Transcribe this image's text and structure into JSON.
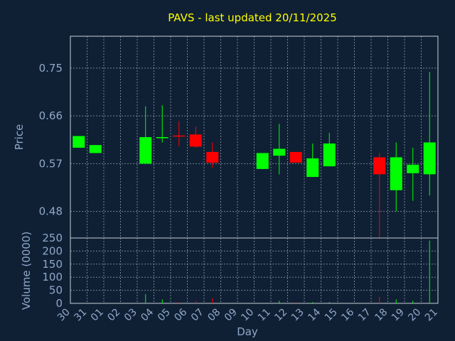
{
  "title": "PAVS - last updated 20/11/2025",
  "colors": {
    "background": "#0f2035",
    "up": "#00ff00",
    "down": "#ff0000",
    "title": "#ffff00",
    "text": "#8fa8c8",
    "axes": "#c8d0d8"
  },
  "chart_data": {
    "type": "candlestick",
    "title": "PAVS - last updated 20/11/2025",
    "xlabel": "Day",
    "price_panel": {
      "ylabel": "Price",
      "ylim": [
        0.43,
        0.81
      ],
      "yticks": [
        "0.75",
        "0.66",
        "0.57",
        "0.48"
      ],
      "grid": true
    },
    "volume_panel": {
      "ylabel": "Volume (0000)",
      "ylim": [
        0,
        250
      ],
      "yticks": [
        "250",
        "200",
        "150",
        "100",
        "50",
        "0"
      ],
      "grid": true
    },
    "x_ticks": [
      "30",
      "31",
      "01",
      "02",
      "03",
      "04",
      "05",
      "06",
      "07",
      "08",
      "09",
      "10",
      "11",
      "12",
      "13",
      "14",
      "15",
      "16",
      "17",
      "18",
      "19",
      "20",
      "21"
    ],
    "candles": [
      {
        "day": "30",
        "open": 0.6,
        "close": 0.622,
        "high": 0.622,
        "low": 0.6,
        "volume": 0
      },
      {
        "day": "31",
        "open": 0.59,
        "close": 0.605,
        "high": 0.605,
        "low": 0.59,
        "volume": 0
      },
      {
        "day": "03",
        "open": 0.57,
        "close": 0.62,
        "high": 0.678,
        "low": 0.57,
        "volume": 35
      },
      {
        "day": "04",
        "open": 0.618,
        "close": 0.62,
        "high": 0.68,
        "low": 0.61,
        "volume": 15
      },
      {
        "day": "05",
        "open": 0.623,
        "close": 0.621,
        "high": 0.65,
        "low": 0.603,
        "volume": 5
      },
      {
        "day": "06",
        "open": 0.625,
        "close": 0.602,
        "high": 0.64,
        "low": 0.6,
        "volume": 10
      },
      {
        "day": "07",
        "open": 0.592,
        "close": 0.572,
        "high": 0.61,
        "low": 0.562,
        "volume": 20
      },
      {
        "day": "10",
        "open": 0.56,
        "close": 0.59,
        "high": 0.59,
        "low": 0.56,
        "volume": 0
      },
      {
        "day": "11",
        "open": 0.585,
        "close": 0.598,
        "high": 0.645,
        "low": 0.55,
        "volume": 10
      },
      {
        "day": "12",
        "open": 0.592,
        "close": 0.572,
        "high": 0.592,
        "low": 0.572,
        "volume": 5
      },
      {
        "day": "13",
        "open": 0.545,
        "close": 0.58,
        "high": 0.608,
        "low": 0.545,
        "volume": 5
      },
      {
        "day": "14",
        "open": 0.565,
        "close": 0.608,
        "high": 0.628,
        "low": 0.565,
        "volume": 5
      },
      {
        "day": "17",
        "open": 0.582,
        "close": 0.55,
        "high": 0.59,
        "low": 0.42,
        "volume": 25
      },
      {
        "day": "18",
        "open": 0.52,
        "close": 0.582,
        "high": 0.61,
        "low": 0.48,
        "volume": 15
      },
      {
        "day": "19",
        "open": 0.552,
        "close": 0.568,
        "high": 0.6,
        "low": 0.5,
        "volume": 10
      },
      {
        "day": "20",
        "open": 0.55,
        "close": 0.61,
        "high": 0.743,
        "low": 0.51,
        "volume": 240
      }
    ]
  }
}
